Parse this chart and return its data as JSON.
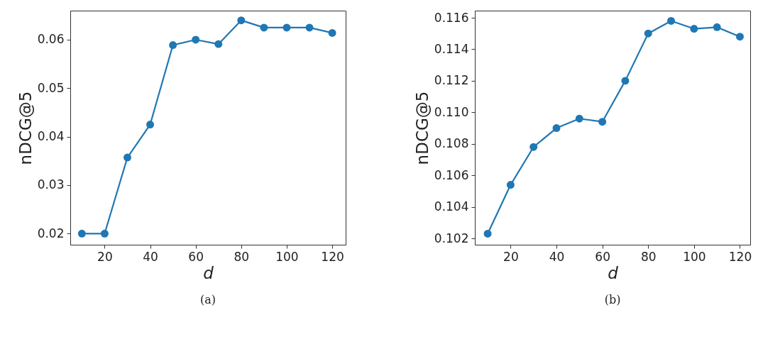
{
  "chart_data": [
    {
      "type": "line",
      "xlabel": "d",
      "ylabel": "nDCG@5",
      "annotations": [
        "(a)"
      ],
      "x": [
        10,
        20,
        30,
        40,
        50,
        60,
        70,
        80,
        90,
        100,
        110,
        120
      ],
      "series": [
        {
          "color": "#1f77b4",
          "values": [
            0.02,
            0.02,
            0.0357,
            0.0425,
            0.0589,
            0.06,
            0.0591,
            0.064,
            0.0625,
            0.0625,
            0.0625,
            0.0614
          ]
        }
      ],
      "xlim": [
        4.9,
        125.9
      ],
      "xticks": [
        20,
        40,
        60,
        80,
        100,
        120
      ],
      "ylim": [
        0.0177,
        0.066
      ],
      "yticks": [
        0.02,
        0.03,
        0.04,
        0.05,
        0.06
      ],
      "marker": "circle",
      "grid": false
    },
    {
      "type": "line",
      "xlabel": "d",
      "ylabel": "nDCG@5",
      "annotations": [
        "(b)"
      ],
      "x": [
        10,
        20,
        30,
        40,
        50,
        60,
        70,
        80,
        90,
        100,
        110,
        120
      ],
      "series": [
        {
          "color": "#1f77b4",
          "values": [
            0.1023,
            0.1054,
            0.1078,
            0.109,
            0.1096,
            0.1094,
            0.112,
            0.115,
            0.1158,
            0.1153,
            0.1154,
            0.1148
          ]
        }
      ],
      "xlim": [
        4.4,
        124.5
      ],
      "xticks": [
        20,
        40,
        60,
        80,
        100,
        120
      ],
      "ylim": [
        0.1016,
        0.11645
      ],
      "yticks": [
        0.102,
        0.104,
        0.106,
        0.108,
        {
          "value": 0.11,
          "label": "0.110"
        },
        0.112,
        0.114,
        0.116
      ],
      "marker": "circle",
      "grid": false
    }
  ]
}
